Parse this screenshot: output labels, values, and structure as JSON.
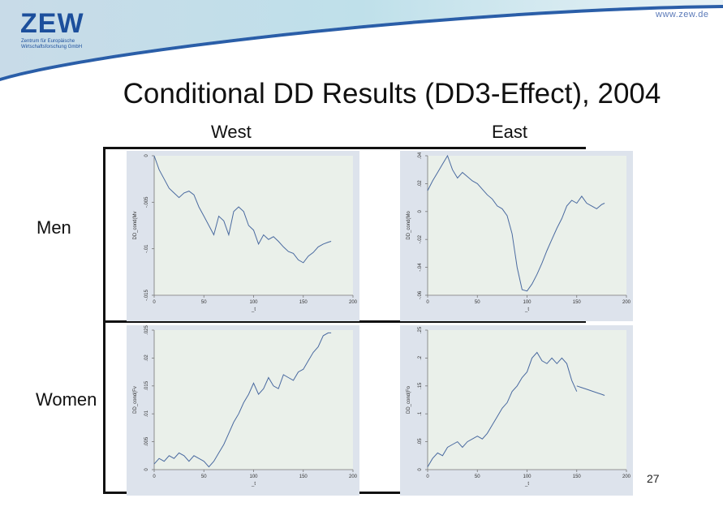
{
  "header": {
    "logo": "ZEW",
    "logo_sub_1": "Zentrum für Europäische",
    "logo_sub_2": "Wirtschaftsforschung GmbH",
    "url": "www.zew.de"
  },
  "title": "Conditional DD Results (DD3-Effect), 2004",
  "columns": [
    "West",
    "East"
  ],
  "rows": [
    "Men",
    "Women"
  ],
  "page_number": "27",
  "colors": {
    "brand": "#1c4f9c",
    "line": "#4a6aa0",
    "panel_bg": "#dde3ec",
    "plot_bg": "#eaf0ea"
  },
  "chart_data": [
    {
      "type": "line",
      "panel": "West / Men",
      "ylabel": "DD_cond(Mv",
      "xlabel": "_t",
      "xlim": [
        0,
        200
      ],
      "ylim": [
        -0.015,
        0
      ],
      "xticks": [
        0,
        50,
        100,
        150,
        200
      ],
      "xtick_labels": [
        "0",
        "50",
        "100",
        "150",
        "200"
      ],
      "yticks": [
        0,
        -0.005,
        -0.01,
        -0.015
      ],
      "ytick_labels": [
        "0",
        "-.005",
        "-.01",
        "-.015"
      ],
      "series": [
        {
          "x": [
            0,
            5,
            10,
            15,
            20,
            25,
            30,
            35,
            40,
            45,
            50,
            55,
            60,
            65,
            70,
            75,
            80,
            85,
            90,
            95,
            100,
            105,
            110,
            115,
            120,
            125,
            130,
            135,
            140,
            145,
            150,
            155,
            160,
            165,
            170,
            175,
            178
          ],
          "y": [
            0,
            -0.0015,
            -0.0025,
            -0.0035,
            -0.004,
            -0.0045,
            -0.004,
            -0.0038,
            -0.0042,
            -0.0055,
            -0.0065,
            -0.0075,
            -0.0085,
            -0.0065,
            -0.007,
            -0.0085,
            -0.006,
            -0.0055,
            -0.006,
            -0.0075,
            -0.008,
            -0.0095,
            -0.0085,
            -0.009,
            -0.0087,
            -0.0092,
            -0.0098,
            -0.0103,
            -0.0105,
            -0.0112,
            -0.0115,
            -0.0108,
            -0.0104,
            -0.0098,
            -0.0095,
            -0.0093,
            -0.0092
          ]
        }
      ]
    },
    {
      "type": "line",
      "panel": "East / Men",
      "ylabel": "DD_cond(Mo",
      "xlabel": "_t",
      "xlim": [
        0,
        200
      ],
      "ylim": [
        -0.06,
        0.04
      ],
      "xticks": [
        0,
        50,
        100,
        150,
        200
      ],
      "xtick_labels": [
        "0",
        "50",
        "100",
        "150",
        "200"
      ],
      "yticks": [
        0.04,
        0.02,
        0,
        -0.02,
        -0.04,
        -0.06
      ],
      "ytick_labels": [
        ".04",
        ".02",
        "0",
        "-.02",
        "-.04",
        "-.06"
      ],
      "series": [
        {
          "x": [
            0,
            5,
            10,
            15,
            20,
            25,
            30,
            35,
            40,
            45,
            50,
            55,
            60,
            65,
            70,
            75,
            80,
            85,
            90,
            95,
            100,
            105,
            110,
            115,
            120,
            125,
            130,
            135,
            140,
            145,
            150,
            155,
            160,
            165,
            170,
            175,
            178
          ],
          "y": [
            0.015,
            0.022,
            0.028,
            0.034,
            0.04,
            0.03,
            0.024,
            0.028,
            0.025,
            0.022,
            0.02,
            0.016,
            0.012,
            0.009,
            0.004,
            0.002,
            -0.003,
            -0.016,
            -0.04,
            -0.056,
            -0.057,
            -0.052,
            -0.045,
            -0.037,
            -0.028,
            -0.02,
            -0.012,
            -0.005,
            0.004,
            0.008,
            0.006,
            0.011,
            0.006,
            0.004,
            0.002,
            0.005,
            0.006
          ]
        }
      ]
    },
    {
      "type": "line",
      "panel": "West / Women",
      "ylabel": "DD_cond(Fv",
      "xlabel": "_t",
      "xlim": [
        0,
        200
      ],
      "ylim": [
        0,
        0.025
      ],
      "xticks": [
        0,
        50,
        100,
        150,
        200
      ],
      "xtick_labels": [
        "0",
        "50",
        "100",
        "150",
        "200"
      ],
      "yticks": [
        0.025,
        0.02,
        0.015,
        0.01,
        0.005,
        0
      ],
      "ytick_labels": [
        ".025",
        ".02",
        ".015",
        ".01",
        ".005",
        "0"
      ],
      "series": [
        {
          "x": [
            0,
            5,
            10,
            15,
            20,
            25,
            30,
            35,
            40,
            45,
            50,
            55,
            60,
            65,
            70,
            75,
            80,
            85,
            90,
            95,
            100,
            105,
            110,
            115,
            120,
            125,
            130,
            135,
            140,
            145,
            150,
            155,
            160,
            165,
            170,
            175,
            178
          ],
          "y": [
            0.001,
            0.002,
            0.0015,
            0.0025,
            0.002,
            0.003,
            0.0025,
            0.0015,
            0.0025,
            0.002,
            0.0015,
            0.0005,
            0.0015,
            0.003,
            0.0045,
            0.0065,
            0.0085,
            0.01,
            0.012,
            0.0135,
            0.0155,
            0.0135,
            0.0145,
            0.0165,
            0.015,
            0.0145,
            0.017,
            0.0165,
            0.016,
            0.0175,
            0.018,
            0.0195,
            0.021,
            0.022,
            0.024,
            0.0245,
            0.0245
          ]
        }
      ]
    },
    {
      "type": "line",
      "panel": "East / Women",
      "ylabel": "DD_cond(Fo",
      "xlabel": "_t",
      "xlim": [
        0,
        200
      ],
      "ylim": [
        0,
        0.25
      ],
      "xticks": [
        0,
        50,
        100,
        150,
        200
      ],
      "xtick_labels": [
        "0",
        "50",
        "100",
        "150",
        "200"
      ],
      "yticks": [
        0.25,
        0.2,
        0.15,
        0.1,
        0.05,
        0
      ],
      "ytick_labels": [
        ".25",
        ".2",
        ".15",
        ".1",
        ".05",
        "0"
      ],
      "series": [
        {
          "x": [
            0,
            5,
            10,
            15,
            20,
            25,
            30,
            35,
            40,
            45,
            50,
            55,
            60,
            65,
            70,
            75,
            80,
            85,
            90,
            95,
            100,
            105,
            110,
            115,
            120,
            125,
            130,
            135,
            140,
            145,
            150
          ],
          "y": [
            0.005,
            0.02,
            0.03,
            0.025,
            0.04,
            0.045,
            0.05,
            0.04,
            0.05,
            0.055,
            0.06,
            0.055,
            0.065,
            0.08,
            0.095,
            0.11,
            0.12,
            0.14,
            0.15,
            0.165,
            0.175,
            0.2,
            0.21,
            0.195,
            0.19,
            0.2,
            0.19,
            0.2,
            0.19,
            0.16,
            0.14
          ]
        },
        {
          "x": [
            150,
            155,
            160,
            165,
            170,
            175,
            178
          ],
          "y": [
            0.15,
            0.147,
            0.144,
            0.141,
            0.138,
            0.135,
            0.133
          ]
        }
      ]
    }
  ]
}
